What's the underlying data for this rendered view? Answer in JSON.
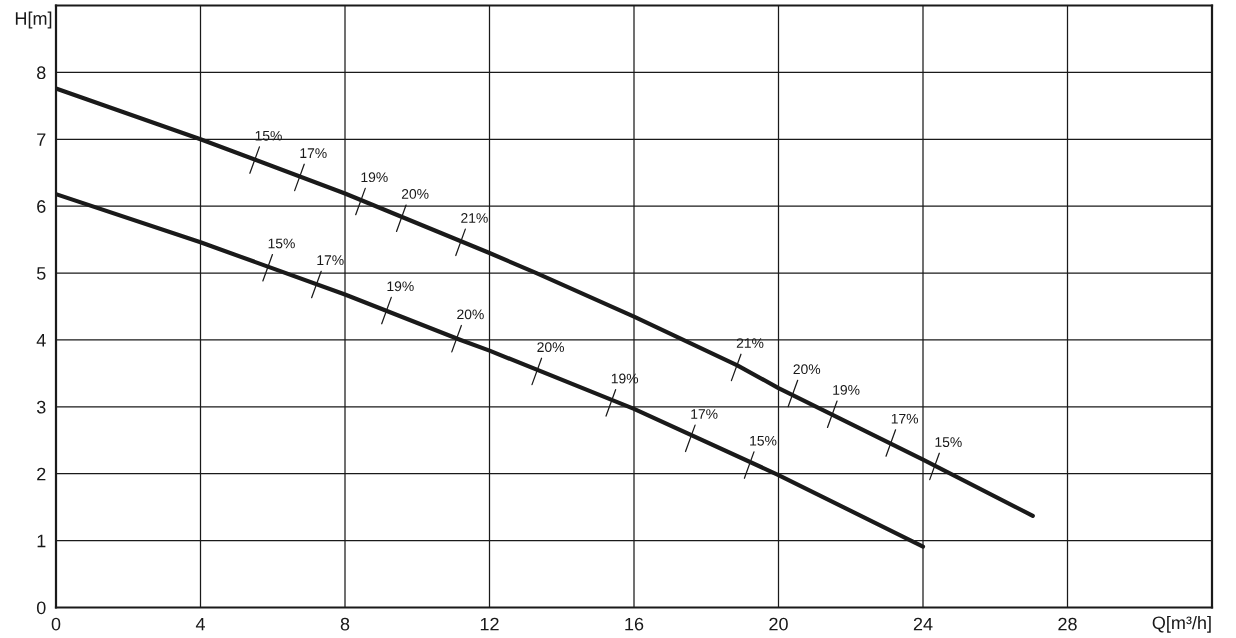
{
  "chart_data": {
    "type": "line",
    "xlabel": "Q[m³/h]",
    "ylabel": "H[m]",
    "xlim": [
      0,
      32
    ],
    "ylim": [
      0,
      9
    ],
    "xticks": [
      0,
      4,
      8,
      12,
      16,
      20,
      24,
      28
    ],
    "yticks": [
      0,
      1,
      2,
      3,
      4,
      5,
      6,
      7,
      8
    ],
    "grid": true,
    "line_style": "solid",
    "series": [
      {
        "color": "#1a1a1a",
        "x": [
          0,
          4,
          8,
          12,
          13.3,
          16,
          18.86,
          20,
          24,
          27.04
        ],
        "values": [
          7.76,
          7.0,
          6.19,
          5.3,
          5.0,
          4.35,
          3.62,
          3.28,
          2.21,
          1.37
        ]
      },
      {
        "color": "#1a1a1a",
        "x": [
          0,
          4,
          8,
          11.2,
          12,
          16,
          20,
          24
        ],
        "values": [
          6.18,
          5.46,
          4.68,
          4.0,
          3.84,
          2.97,
          1.98,
          0.91
        ]
      }
    ],
    "annotations": [
      {
        "text": "15%",
        "x": 5.52,
        "y": 6.71
      },
      {
        "text": "17%",
        "x": 6.76,
        "y": 6.45
      },
      {
        "text": "19%",
        "x": 8.45,
        "y": 6.09
      },
      {
        "text": "20%",
        "x": 9.58,
        "y": 5.84
      },
      {
        "text": "21%",
        "x": 11.22,
        "y": 5.48
      },
      {
        "text": "21%",
        "x": 18.85,
        "y": 3.61
      },
      {
        "text": "20%",
        "x": 20.42,
        "y": 3.22
      },
      {
        "text": "19%",
        "x": 21.51,
        "y": 2.91
      },
      {
        "text": "17%",
        "x": 23.13,
        "y": 2.48
      },
      {
        "text": "15%",
        "x": 24.34,
        "y": 2.13
      },
      {
        "text": "15%",
        "x": 5.88,
        "y": 5.1
      },
      {
        "text": "17%",
        "x": 7.23,
        "y": 4.85
      },
      {
        "text": "19%",
        "x": 9.17,
        "y": 4.46
      },
      {
        "text": "20%",
        "x": 11.11,
        "y": 4.04
      },
      {
        "text": "20%",
        "x": 13.33,
        "y": 3.55
      },
      {
        "text": "19%",
        "x": 15.38,
        "y": 3.08
      },
      {
        "text": "17%",
        "x": 17.58,
        "y": 2.55
      },
      {
        "text": "15%",
        "x": 19.21,
        "y": 2.15
      }
    ]
  }
}
